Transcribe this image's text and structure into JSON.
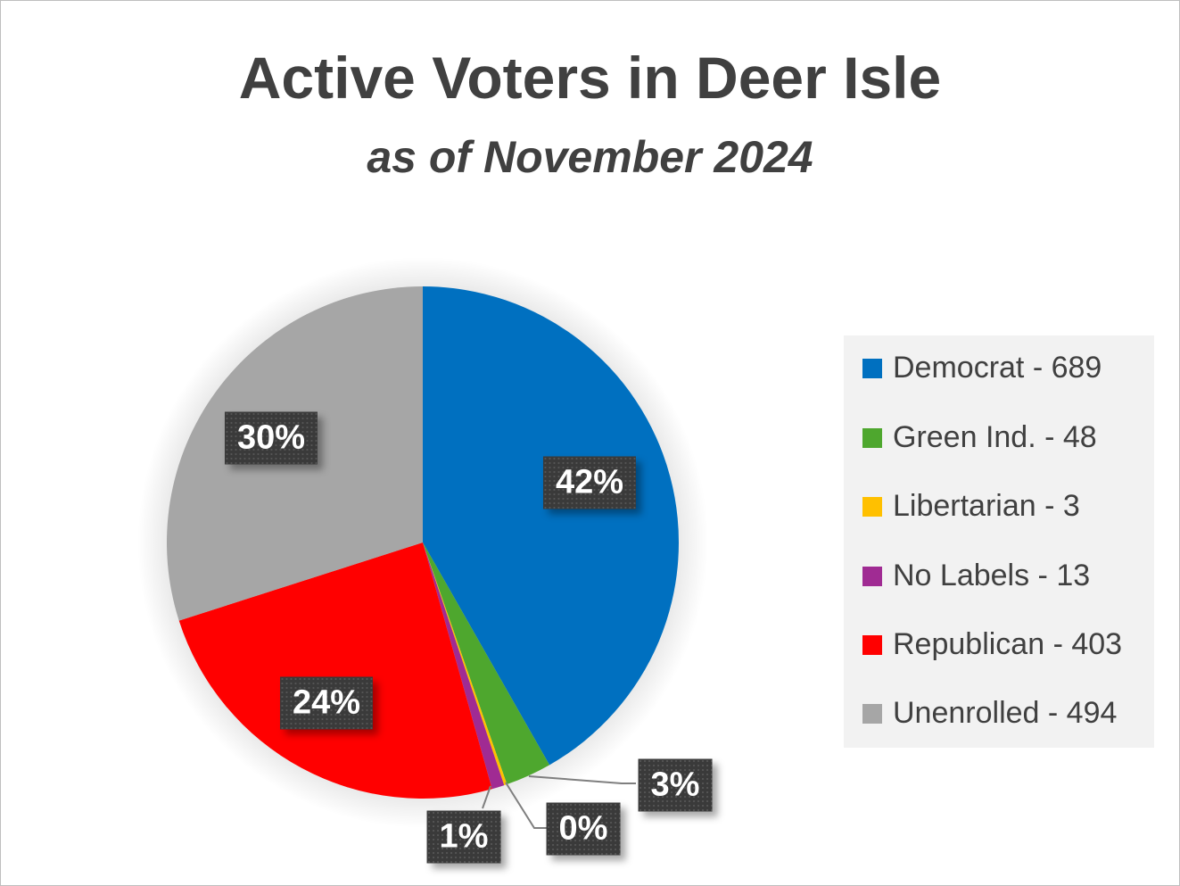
{
  "chart_data": {
    "type": "pie",
    "title": "Active Voters in Deer Isle",
    "subtitle": "as of November 2024",
    "legend_position": "right",
    "start_angle_deg": 0,
    "direction": "clockwise",
    "slices": [
      {
        "name": "Democrat",
        "value": 689,
        "legend": "Democrat - 689",
        "label": "42%",
        "color": "#0070C0"
      },
      {
        "name": "Green Ind.",
        "value": 48,
        "legend": "Green Ind. - 48",
        "label": "3%",
        "color": "#4EA72E"
      },
      {
        "name": "Libertarian",
        "value": 3,
        "legend": "Libertarian - 3",
        "label": "0%",
        "color": "#FFC000"
      },
      {
        "name": "No Labels",
        "value": 13,
        "legend": "No Labels - 13",
        "label": "1%",
        "color": "#A02B93"
      },
      {
        "name": "Republican",
        "value": 403,
        "legend": "Republican - 403",
        "label": "24%",
        "color": "#FF0000"
      },
      {
        "name": "Unenrolled",
        "value": 494,
        "legend": "Unenrolled - 494",
        "label": "30%",
        "color": "#A6A6A6"
      }
    ]
  }
}
